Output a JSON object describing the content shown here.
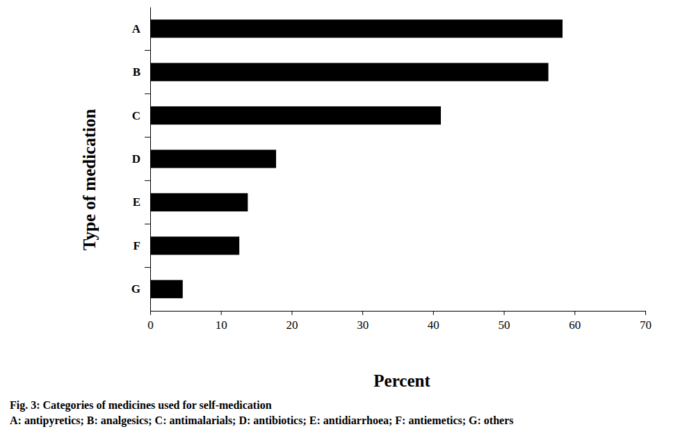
{
  "chart_data": {
    "type": "bar",
    "orientation": "horizontal",
    "title": "Fig. 3: Categories of medicines used for self-medication",
    "subtitle": "A: antipyretics; B: analgesics; C: antimalarials; D: antibiotics; E: antidiarrhoea; F: antiemetics; G: others",
    "x_label": "Percent",
    "y_label": "Type of medication",
    "categories": [
      "A",
      "B",
      "C",
      "D",
      "E",
      "F",
      "G"
    ],
    "values": [
      58.3,
      56.3,
      41.1,
      17.8,
      13.8,
      12.6,
      4.6
    ],
    "color": "#000000",
    "xlim": [
      0,
      70
    ],
    "xticks": [
      0,
      10,
      20,
      30,
      40,
      50,
      60,
      70
    ],
    "grid": false
  }
}
